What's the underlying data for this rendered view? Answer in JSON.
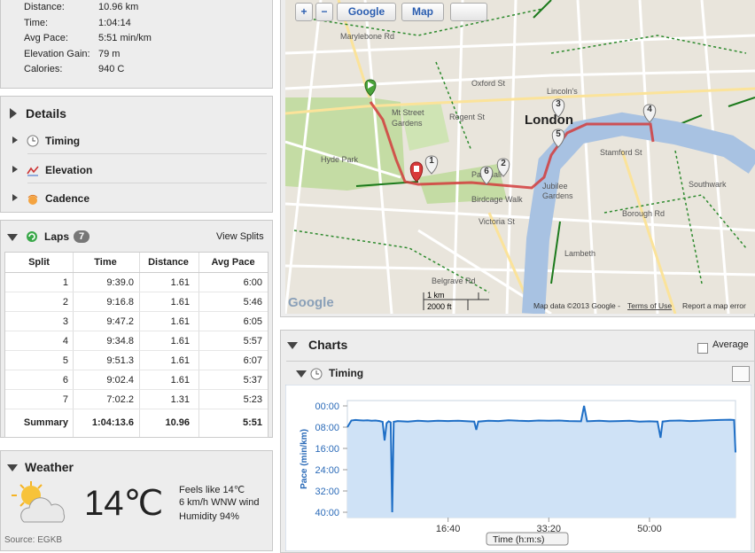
{
  "summary": {
    "rows": [
      {
        "label": "Distance:",
        "value": "10.96 km"
      },
      {
        "label": "Time:",
        "value": "1:04:14"
      },
      {
        "label": "Avg Pace:",
        "value": "5:51 min/km"
      },
      {
        "label": "Elevation Gain:",
        "value": "79 m"
      },
      {
        "label": "Calories:",
        "value": "940 C"
      }
    ]
  },
  "details": {
    "title": "Details",
    "items": [
      "Timing",
      "Elevation",
      "Cadence"
    ]
  },
  "laps": {
    "title": "Laps",
    "count": "7",
    "action": "View Splits",
    "headers": [
      "Split",
      "Time",
      "Distance",
      "Avg Pace"
    ],
    "rows": [
      [
        "1",
        "9:39.0",
        "1.61",
        "6:00"
      ],
      [
        "2",
        "9:16.8",
        "1.61",
        "5:46"
      ],
      [
        "3",
        "9:47.2",
        "1.61",
        "6:05"
      ],
      [
        "4",
        "9:34.8",
        "1.61",
        "5:57"
      ],
      [
        "5",
        "9:51.3",
        "1.61",
        "6:07"
      ],
      [
        "6",
        "9:02.4",
        "1.61",
        "5:37"
      ],
      [
        "7",
        "7:02.2",
        "1.31",
        "5:23"
      ]
    ],
    "summary": [
      "Summary",
      "1:04:13.6",
      "10.96",
      "5:51"
    ]
  },
  "weather": {
    "title": "Weather",
    "temperature": "14℃",
    "feels_like": "Feels like 14℃",
    "wind": "6 km/h WNW wind",
    "humidity": "Humidity 94%",
    "source": "Source: EGKB"
  },
  "map": {
    "controls": [
      "+",
      "−",
      "Google",
      "Map"
    ],
    "labels": [
      "Marylebone Rd",
      "Oxford St",
      "Mt Street",
      "Gardens",
      "Hyde Park",
      "Regent St",
      "Pall Mall",
      "Birdcage Walk",
      "Victoria St",
      "London",
      "Lincoln's",
      "Jubilee",
      "Gardens",
      "Southwark",
      "Lambeth",
      "Stamford St",
      "Borough Rd",
      "Belgrave Rd"
    ],
    "markers": [
      "1",
      "2",
      "3",
      "4",
      "5",
      "6"
    ],
    "scale": [
      "1 km",
      "2000 ft"
    ],
    "logo": "Google",
    "attribution": "Map data ©2013 Google -",
    "terms": "Terms of Use",
    "report": "Report a map error"
  },
  "charts": {
    "title": "Charts",
    "average": "Average",
    "panel": "Timing"
  },
  "chart_data": {
    "type": "area",
    "x_label": "Time (h:m:s)",
    "y_label": "Pace (min/km)",
    "x": [
      0,
      40,
      80,
      120,
      160,
      200,
      240,
      280,
      320,
      350,
      370,
      390,
      410,
      430,
      445,
      460,
      500,
      600,
      700,
      800,
      900,
      1000,
      1100,
      1200,
      1260,
      1280,
      1300,
      1400,
      1500,
      1600,
      1700,
      1800,
      1900,
      2000,
      2100,
      2200,
      2320,
      2350,
      2380,
      2500,
      2600,
      2700,
      2800,
      2900,
      3000,
      3080,
      3110,
      3130,
      3200,
      3300,
      3400,
      3500,
      3600,
      3700,
      3800,
      3840,
      3854
    ],
    "values": [
      8,
      5.5,
      5.3,
      5.4,
      5.5,
      5.4,
      5.6,
      5.5,
      5.7,
      6,
      13,
      6.5,
      5.8,
      6.2,
      40,
      6,
      5.7,
      5.9,
      5.6,
      5.8,
      5.6,
      5.7,
      5.6,
      5.8,
      5.9,
      9,
      5.9,
      5.6,
      5.7,
      5.4,
      5.6,
      5.7,
      5.5,
      5.6,
      5.5,
      5.7,
      5.8,
      0,
      5.8,
      5.6,
      5.8,
      5.7,
      5.6,
      5.9,
      5.8,
      5.9,
      12,
      5.9,
      5.6,
      5.5,
      5.7,
      5.6,
      5.4,
      5.3,
      5.2,
      5.3,
      17.5
    ],
    "color": "#1f6fc6",
    "fill_color": "#cfe2f6",
    "xlim": [
      0,
      3854
    ],
    "ylim": [
      42,
      -2
    ],
    "xticks": [
      {
        "value": 1000,
        "label": "16:40"
      },
      {
        "value": 2000,
        "label": "33:20"
      },
      {
        "value": 3000,
        "label": "50:00"
      }
    ],
    "yticks": [
      {
        "value": 0,
        "label": "00:00"
      },
      {
        "value": 8,
        "label": "08:00"
      },
      {
        "value": 16,
        "label": "16:00"
      },
      {
        "value": 24,
        "label": "24:00"
      },
      {
        "value": 32,
        "label": "32:00"
      },
      {
        "value": 40,
        "label": "40:00"
      }
    ]
  }
}
